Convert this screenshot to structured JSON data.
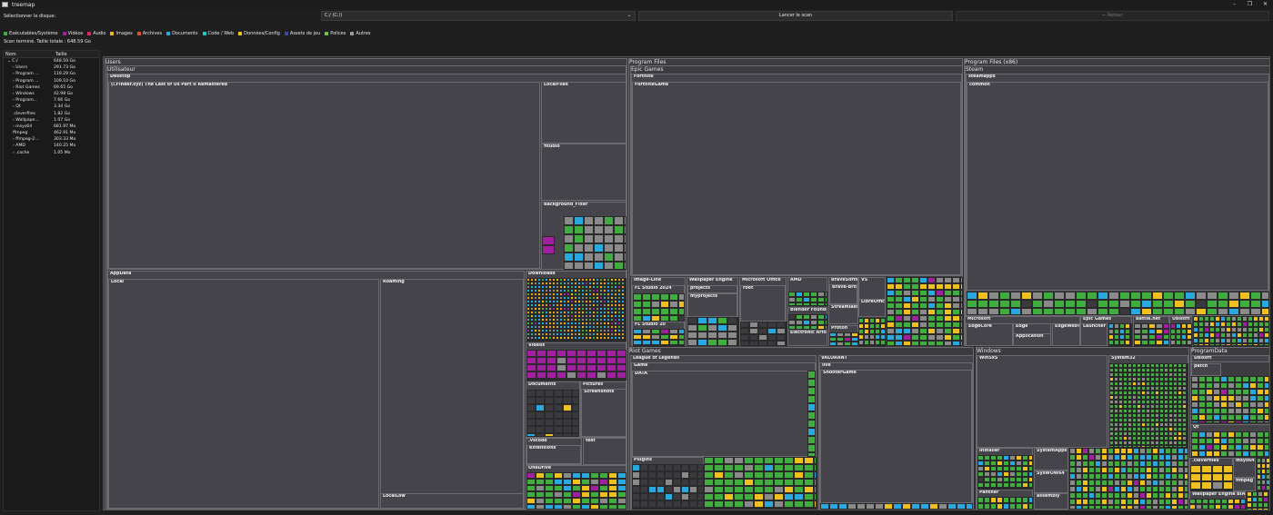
{
  "window": {
    "title": "treemap",
    "controls": [
      "–",
      "❐",
      "✕"
    ]
  },
  "toolbar": {
    "disk_label": "Sélectionner le disque:",
    "disk_value": "C:/ (C:/)",
    "scan_label": "Lancer le scan",
    "back_label": "← Retour"
  },
  "legend": [
    {
      "label": "Exécutables/Système",
      "color": "#3fae3f"
    },
    {
      "label": "Vidéos",
      "color": "#a020a0"
    },
    {
      "label": "Audio",
      "color": "#e0245e"
    },
    {
      "label": "Images",
      "color": "#f0b428"
    },
    {
      "label": "Archives",
      "color": "#e05030"
    },
    {
      "label": "Documents",
      "color": "#2aa8e0"
    },
    {
      "label": "Code / Web",
      "color": "#1fc8c8"
    },
    {
      "label": "Données/Config",
      "color": "#f0c020"
    },
    {
      "label": "Assets de jeu",
      "color": "#3848a8"
    },
    {
      "label": "Polices",
      "color": "#7ac040"
    },
    {
      "label": "Autres",
      "color": "#999999"
    }
  ],
  "status": "Scan terminé. Taille totale : 648.59 Go",
  "tree": {
    "col_name": "Nom",
    "col_size": "Taille",
    "rows": [
      {
        "name": "⌄  C:/",
        "size": "648.59 Go"
      },
      {
        "name": "›  Users",
        "size": "291.73 Go"
      },
      {
        "name": "›  Program ...",
        "size": "119.29 Go"
      },
      {
        "name": "›  Program ...",
        "size": "109.10 Go"
      },
      {
        "name": "›  Riot Games",
        "size": "69.65 Go"
      },
      {
        "name": "›  Windows",
        "size": "42.98 Go"
      },
      {
        "name": "›  Program...",
        "size": "7.66 Go"
      },
      {
        "name": "›  Qt",
        "size": "3.34 Go"
      },
      {
        "name": "   .cleverfiles",
        "size": "1.82 Go"
      },
      {
        "name": "›  Wallpape...",
        "size": "1.07 Go"
      },
      {
        "name": "›  msys64",
        "size": "681.97 Mo"
      },
      {
        "name": "   ffmpeg",
        "size": "462.91 Mo"
      },
      {
        "name": "›  ffmpeg-2...",
        "size": "303.33 Mo"
      },
      {
        "name": "›  AMD",
        "size": "140.25 Mo"
      },
      {
        "name": "›  .cache",
        "size": "1.05 Mo"
      }
    ]
  },
  "treemap_labels": {
    "users": "Users",
    "utilisateur": "Utilisateur",
    "desktop": "Desktop",
    "tlou": "(i.Finder.xyz) The Last of Us Part II Remastered",
    "localfiles": "LocalFiles",
    "fltudio": "fltudio",
    "background_fixer": "Background_Fixer",
    "appdata": "AppData",
    "local": "Local",
    "roaming": "Roaming",
    "locallow": "LocalLow",
    "downloads": "Downloads",
    "videos": "Videos",
    "documents": "Documents",
    "pictures": "Pictures",
    "screenshots": "Screenshots",
    "vscode": ".vscode",
    "extensions": "extensions",
    "test": "test",
    "onedrive": "OneDrive",
    "program_files": "Program Files",
    "epic_games": "Epic Games",
    "fortnite": "Fortnite",
    "fortnitegame": "FortniteGame",
    "image_line": "Image-Line",
    "fl_studio_2024": "FL Studio 2024",
    "fl_studio_20": "FL Studio 20",
    "wallpaper_engine": "Wallpaper Engine",
    "projects": "projects",
    "myprojects": "myprojects",
    "microsoft_office": "Microsoft Office",
    "root": "root",
    "amd": "AMD",
    "bravesoftware": "BraveSoftware",
    "brave_browser": "Brave-Browser",
    "vs": "VS",
    "libreoffice": "LibreOffice",
    "streamlabs_obs": "Streamlabs OBS",
    "blender_foundation": "Blender Foundation",
    "electronic_arts": "Electronic Arts",
    "proton": "Proton",
    "program_files_x86": "Program Files (x86)",
    "steam": "Steam",
    "steamapps": "steamapps",
    "common": "common",
    "microsoft": "Microsoft",
    "edgecore": "EdgeCore",
    "edge": "Edge",
    "application": "Application",
    "edgewebview": "EdgeWebView",
    "epic_games2": "Epic Games",
    "launcher": "Launcher",
    "battlenet": "Battle.net",
    "ubisoft": "Ubisoft",
    "riot_games": "Riot Games",
    "league": "League of Legends",
    "game": "Game",
    "data": "DATA",
    "plugins": "Plugins",
    "valorant": "VALORANT",
    "live": "live",
    "shootergame": "ShooterGame",
    "windows": "Windows",
    "winsxs": "WinSxS",
    "system32": "System32",
    "installer": "Installer",
    "systemapps": "SystemApps",
    "syswow64": "SysWOW64",
    "panther": "Panther",
    "assembly": "assembly",
    "programdata": "ProgramData",
    "ubisoft2": "Ubisoft",
    "patch": "patch",
    "qt": "Qt",
    "cleverfiles": ".cleverfiles",
    "msys64": "msys64",
    "ffmpeg": "ffmpeg",
    "wallpaper_engine2": "Wallpaper Engine BIAB",
    "amd2": "AMD"
  }
}
